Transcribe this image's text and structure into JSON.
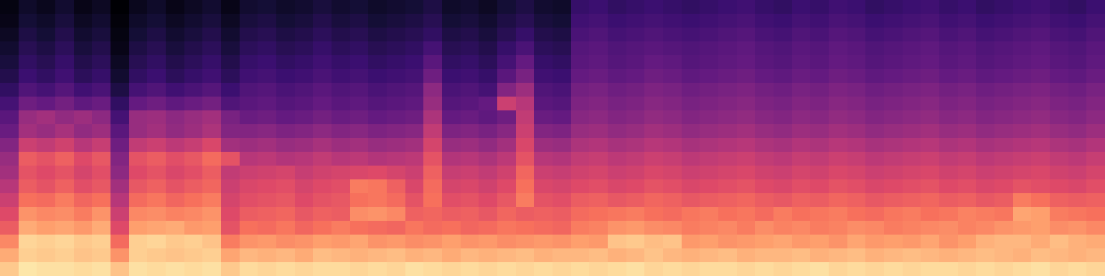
{
  "chart_data": {
    "type": "heatmap",
    "color": "magma",
    "tick_labels": false,
    "zlim": [
      -80,
      0
    ],
    "cells": [
      [
        -9,
        -4,
        -5,
        -5,
        -6,
        -5,
        -10,
        -5,
        -6,
        -5,
        -6,
        -5,
        -9,
        -6,
        -7,
        -6,
        -7,
        -6,
        -6,
        -7,
        -6,
        -7,
        -5,
        -6,
        -7,
        -6,
        -7,
        -6,
        -7,
        -6,
        -7,
        -6,
        -7,
        -6,
        -5,
        -7,
        -6,
        -7,
        -6,
        -6,
        -7,
        -6,
        -7,
        -6,
        -5,
        -7,
        -6,
        -7,
        -6,
        -7,
        -6,
        -6,
        -7,
        -6,
        -7,
        -6,
        -5,
        -7,
        -6,
        -7
      ],
      [
        -14,
        -8,
        -9,
        -8,
        -10,
        -9,
        -18,
        -8,
        -9,
        -10,
        -9,
        -8,
        -15,
        -12,
        -13,
        -12,
        -14,
        -11,
        -12,
        -13,
        -12,
        -11,
        -13,
        -12,
        -14,
        -12,
        -13,
        -12,
        -11,
        -13,
        -12,
        -12,
        -11,
        -13,
        -12,
        -10,
        -12,
        -13,
        -12,
        -11,
        -13,
        -12,
        -12,
        -11,
        -13,
        -12,
        -11,
        -13,
        -12,
        -11,
        -12,
        -13,
        -12,
        -11,
        -12,
        -13,
        -11,
        -12,
        -13,
        -12
      ],
      [
        -20,
        -7,
        -8,
        -7,
        -9,
        -8,
        -25,
        -8,
        -7,
        -9,
        -8,
        -10,
        -22,
        -18,
        -17,
        -19,
        -18,
        -16,
        -17,
        -15,
        -18,
        -17,
        -19,
        -18,
        -16,
        -18,
        -17,
        -19,
        -18,
        -17,
        -18,
        -16,
        -17,
        -10,
        -9,
        -11,
        -10,
        -17,
        -16,
        -18,
        -17,
        -16,
        -15,
        -17,
        -16,
        -18,
        -15,
        -17,
        -16,
        -17,
        -15,
        -18,
        -16,
        -13,
        -12,
        -12,
        -14,
        -11,
        -13,
        -14
      ],
      [
        -28,
        -14,
        -16,
        -15,
        -17,
        -14,
        -32,
        -16,
        -15,
        -14,
        -17,
        -16,
        -30,
        -24,
        -25,
        -23,
        -26,
        -24,
        -22,
        -24,
        -25,
        -26,
        -23,
        -25,
        -24,
        -26,
        -25,
        -23,
        -24,
        -25,
        -26,
        -22,
        -21,
        -18,
        -17,
        -19,
        -20,
        -22,
        -21,
        -20,
        -22,
        -19,
        -21,
        -20,
        -22,
        -21,
        -19,
        -20,
        -22,
        -21,
        -20,
        -19,
        -21,
        -20,
        -18,
        -17,
        -16,
        -19,
        -18,
        -20
      ],
      [
        -32,
        -18,
        -20,
        -19,
        -22,
        -18,
        -36,
        -20,
        -19,
        -21,
        -20,
        -18,
        -32,
        -28,
        -27,
        -26,
        -29,
        -27,
        -28,
        -19,
        -18,
        -20,
        -27,
        -26,
        -28,
        -27,
        -29,
        -26,
        -28,
        -27,
        -28,
        -25,
        -24,
        -23,
        -22,
        -24,
        -25,
        -23,
        -22,
        -24,
        -23,
        -25,
        -22,
        -24,
        -23,
        -22,
        -24,
        -25,
        -23,
        -22,
        -24,
        -23,
        -21,
        -22,
        -23,
        -15,
        -16,
        -22,
        -23,
        -24
      ],
      [
        -36,
        -24,
        -25,
        -22,
        -26,
        -24,
        -40,
        -25,
        -23,
        -26,
        -24,
        -22,
        -34,
        -31,
        -30,
        -29,
        -32,
        -30,
        -29,
        -24,
        -23,
        -25,
        -30,
        -24,
        -31,
        -30,
        -32,
        -29,
        -22,
        -30,
        -31,
        -28,
        -27,
        -29,
        -28,
        -26,
        -27,
        -29,
        -28,
        -27,
        -26,
        -28,
        -29,
        -27,
        -28,
        -26,
        -27,
        -29,
        -28,
        -27,
        -26,
        -28,
        -27,
        -29,
        -28,
        -22,
        -24,
        -27,
        -28,
        -27
      ],
      [
        -40,
        -28,
        -30,
        -27,
        -31,
        -29,
        -44,
        -29,
        -27,
        -30,
        -28,
        -26,
        -36,
        -33,
        -32,
        -31,
        -34,
        -32,
        -31,
        -22,
        -23,
        -27,
        -33,
        -25,
        -34,
        -33,
        -35,
        -32,
        -24,
        -33,
        -34,
        -32,
        -31,
        -33,
        -32,
        -30,
        -31,
        -33,
        -32,
        -31,
        -30,
        -32,
        -33,
        -31,
        -32,
        -30,
        -31,
        -33,
        -32,
        -31,
        -30,
        -32,
        -31,
        -33,
        -32,
        -30,
        -31,
        -32,
        -33,
        -31
      ],
      [
        -44,
        -30,
        -32,
        -30,
        -34,
        -31,
        -48,
        -32,
        -30,
        -33,
        -31,
        -28,
        -38,
        -36,
        -35,
        -34,
        -37,
        -35,
        -34,
        -33,
        -32,
        -34,
        -36,
        -27,
        -37,
        -36,
        -38,
        -35,
        -26,
        -36,
        -37,
        -35,
        -34,
        -36,
        -35,
        -33,
        -34,
        -36,
        -35,
        -34,
        -33,
        -35,
        -36,
        -34,
        -35,
        -33,
        -34,
        -36,
        -35,
        -34,
        -33,
        -35,
        -34,
        -36,
        -35,
        -34,
        -33,
        -35,
        -36,
        -34
      ],
      [
        -46,
        -28,
        -30,
        -27,
        -32,
        -29,
        -50,
        -30,
        -28,
        -31,
        -29,
        -25,
        -30,
        -40,
        -39,
        -41,
        -40,
        -38,
        -40,
        -39,
        -41,
        -40,
        -39,
        -30,
        -41,
        -40,
        -42,
        -39,
        -30,
        -40,
        -41,
        -38,
        -37,
        -39,
        -38,
        -36,
        -37,
        -39,
        -38,
        -37,
        -36,
        -38,
        -39,
        -37,
        -38,
        -36,
        -37,
        -39,
        -38,
        -37,
        -36,
        -38,
        -37,
        -39,
        -38,
        -37,
        -36,
        -38,
        -39,
        -37
      ],
      [
        -50,
        -36,
        -38,
        -35,
        -40,
        -37,
        -54,
        -38,
        -36,
        -39,
        -37,
        -33,
        -44,
        -45,
        -44,
        -46,
        -45,
        -43,
        -45,
        -44,
        -46,
        -45,
        -44,
        -34,
        -46,
        -45,
        -47,
        -44,
        -33,
        -45,
        -46,
        -42,
        -41,
        -43,
        -42,
        -40,
        -41,
        -43,
        -42,
        -41,
        -40,
        -42,
        -43,
        -41,
        -42,
        -40,
        -41,
        -43,
        -42,
        -41,
        -40,
        -42,
        -41,
        -43,
        -42,
        -41,
        -40,
        -42,
        -43,
        -41
      ],
      [
        -55,
        -44,
        -46,
        -43,
        -47,
        -45,
        -58,
        -46,
        -44,
        -47,
        -45,
        -42,
        -50,
        -50,
        -49,
        -51,
        -50,
        -48,
        -50,
        -49,
        -51,
        -50,
        -49,
        -38,
        -51,
        -50,
        -52,
        -49,
        -36,
        -50,
        -51,
        -46,
        -45,
        -47,
        -46,
        -44,
        -45,
        -47,
        -46,
        -45,
        -44,
        -46,
        -47,
        -45,
        -46,
        -44,
        -45,
        -47,
        -46,
        -45,
        -44,
        -46,
        -45,
        -47,
        -46,
        -45,
        -44,
        -46,
        -47,
        -45
      ],
      [
        -58,
        -46,
        -44,
        -47,
        -45,
        -48,
        -62,
        -46,
        -45,
        -48,
        -46,
        -44,
        -52,
        -55,
        -54,
        -56,
        -55,
        -53,
        -55,
        -54,
        -56,
        -55,
        -54,
        -42,
        -56,
        -55,
        -57,
        -54,
        -38,
        -55,
        -56,
        -49,
        -48,
        -50,
        -49,
        -47,
        -48,
        -50,
        -49,
        -48,
        -47,
        -49,
        -50,
        -48,
        -49,
        -47,
        -48,
        -50,
        -49,
        -48,
        -47,
        -49,
        -48,
        -50,
        -49,
        -48,
        -47,
        -49,
        -50,
        -48
      ],
      [
        -62,
        -54,
        -56,
        -53,
        -57,
        -55,
        -66,
        -56,
        -54,
        -57,
        -55,
        -53,
        -60,
        -58,
        -57,
        -59,
        -58,
        -56,
        -58,
        -57,
        -59,
        -58,
        -57,
        -46,
        -59,
        -58,
        -56,
        -36,
        -40,
        -58,
        -59,
        -51,
        -50,
        -52,
        -51,
        -49,
        -50,
        -52,
        -51,
        -50,
        -49,
        -51,
        -52,
        -50,
        -51,
        -49,
        -50,
        -52,
        -51,
        -50,
        -49,
        -51,
        -50,
        -52,
        -51,
        -50,
        -49,
        -51,
        -52,
        -50
      ],
      [
        -66,
        -60,
        -62,
        -59,
        -63,
        -61,
        -70,
        -62,
        -60,
        -63,
        -61,
        -59,
        -64,
        -60,
        -59,
        -61,
        -60,
        -58,
        -60,
        -59,
        -61,
        -60,
        -59,
        -48,
        -61,
        -60,
        -62,
        -50,
        -45,
        -60,
        -61,
        -53,
        -52,
        -54,
        -53,
        -51,
        -52,
        -54,
        -53,
        -52,
        -51,
        -53,
        -54,
        -52,
        -53,
        -51,
        -52,
        -54,
        -53,
        -52,
        -51,
        -53,
        -52,
        -54,
        -53,
        -52,
        -51,
        -53,
        -54,
        -52
      ],
      [
        -69,
        -64,
        -66,
        -63,
        -67,
        -65,
        -73,
        -66,
        -64,
        -67,
        -65,
        -63,
        -67,
        -63,
        -62,
        -64,
        -63,
        -61,
        -63,
        -62,
        -64,
        -63,
        -62,
        -54,
        -64,
        -63,
        -65,
        -58,
        -52,
        -63,
        -64,
        -56,
        -55,
        -57,
        -56,
        -54,
        -55,
        -57,
        -56,
        -55,
        -54,
        -56,
        -57,
        -55,
        -56,
        -54,
        -55,
        -57,
        -56,
        -55,
        -54,
        -56,
        -55,
        -57,
        -56,
        -55,
        -54,
        -56,
        -57,
        -55
      ],
      [
        -71,
        -66,
        -68,
        -65,
        -69,
        -67,
        -75,
        -68,
        -66,
        -69,
        -67,
        -65,
        -69,
        -65,
        -64,
        -66,
        -65,
        -63,
        -65,
        -64,
        -66,
        -65,
        -64,
        -58,
        -66,
        -65,
        -67,
        -62,
        -56,
        -65,
        -66,
        -58,
        -57,
        -59,
        -58,
        -56,
        -57,
        -59,
        -58,
        -57,
        -56,
        -58,
        -59,
        -57,
        -58,
        -56,
        -57,
        -59,
        -58,
        -57,
        -56,
        -58,
        -57,
        -59,
        -58,
        -57,
        -56,
        -58,
        -59,
        -57
      ],
      [
        -73,
        -68,
        -70,
        -67,
        -71,
        -69,
        -77,
        -70,
        -68,
        -71,
        -69,
        -67,
        -71,
        -67,
        -66,
        -68,
        -67,
        -65,
        -67,
        -66,
        -68,
        -67,
        -66,
        -62,
        -68,
        -67,
        -69,
        -65,
        -61,
        -67,
        -68,
        -59,
        -58,
        -60,
        -59,
        -58,
        -59,
        -60,
        -59,
        -58,
        -57,
        -59,
        -60,
        -58,
        -59,
        -57,
        -58,
        -60,
        -59,
        -58,
        -57,
        -59,
        -58,
        -60,
        -59,
        -58,
        -57,
        -59,
        -60,
        -58
      ],
      [
        -75,
        -70,
        -72,
        -69,
        -73,
        -71,
        -78,
        -72,
        -70,
        -73,
        -71,
        -69,
        -73,
        -69,
        -68,
        -70,
        -69,
        -67,
        -69,
        -68,
        -70,
        -69,
        -68,
        -66,
        -70,
        -69,
        -71,
        -68,
        -65,
        -69,
        -70,
        -61,
        -60,
        -62,
        -61,
        -60,
        -61,
        -62,
        -61,
        -60,
        -59,
        -61,
        -62,
        -60,
        -61,
        -59,
        -60,
        -62,
        -61,
        -60,
        -59,
        -61,
        -60,
        -62,
        -61,
        -60,
        -59,
        -61,
        -62,
        -60
      ],
      [
        -77,
        -72,
        -74,
        -71,
        -75,
        -73,
        -79,
        -74,
        -72,
        -75,
        -73,
        -71,
        -75,
        -71,
        -70,
        -72,
        -71,
        -69,
        -71,
        -70,
        -72,
        -71,
        -70,
        -68,
        -72,
        -71,
        -73,
        -70,
        -68,
        -71,
        -72,
        -63,
        -62,
        -64,
        -63,
        -62,
        -63,
        -64,
        -63,
        -62,
        -61,
        -63,
        -64,
        -62,
        -63,
        -61,
        -62,
        -64,
        -63,
        -62,
        -61,
        -63,
        -62,
        -64,
        -63,
        -62,
        -61,
        -63,
        -64,
        -62
      ],
      [
        -78,
        -74,
        -76,
        -73,
        -77,
        -75,
        -80,
        -76,
        -74,
        -77,
        -75,
        -73,
        -77,
        -73,
        -72,
        -74,
        -73,
        -71,
        -73,
        -72,
        -74,
        -73,
        -72,
        -70,
        -74,
        -73,
        -75,
        -72,
        -70,
        -73,
        -74,
        -65,
        -64,
        -66,
        -65,
        -64,
        -65,
        -66,
        -65,
        -64,
        -63,
        -65,
        -66,
        -64,
        -65,
        -63,
        -64,
        -66,
        -65,
        -64,
        -63,
        -65,
        -64,
        -66,
        -65,
        -64,
        -63,
        -65,
        -66,
        -64
      ]
    ]
  }
}
